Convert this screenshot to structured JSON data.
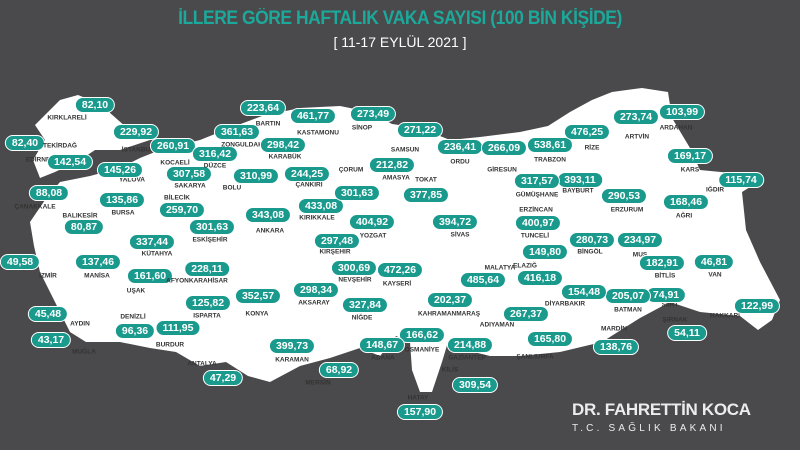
{
  "header": {
    "title": "İLLERE GÖRE HAFTALIK VAKA SAYISI (100 BİN KİŞİDE)",
    "date_range": "[ 11-17 EYLÜL 2021 ]"
  },
  "colors": {
    "background": "#4a4a4c",
    "map_fill": "#ffffff",
    "badge": "#1a9a8d",
    "title": "#1ba99b"
  },
  "provinces": [
    {
      "name": "KIRKLARELİ",
      "value": "82,10"
    },
    {
      "name": "EDİRNE",
      "value": "82,40"
    },
    {
      "name": "TEKİRDAĞ",
      "value": "142,54"
    },
    {
      "name": "İSTANBUL",
      "value": "229,92"
    },
    {
      "name": "KOCAELİ",
      "value": "260,91"
    },
    {
      "name": "YALOVA",
      "value": "145,26"
    },
    {
      "name": "SAKARYA",
      "value": "307,58"
    },
    {
      "name": "DÜZCE",
      "value": "316,42"
    },
    {
      "name": "ZONGULDAK",
      "value": "361,63"
    },
    {
      "name": "BARTIN",
      "value": "223,64"
    },
    {
      "name": "KARABÜK",
      "value": "298,42"
    },
    {
      "name": "KASTAMONU",
      "value": "461,77"
    },
    {
      "name": "SİNOP",
      "value": "273,49"
    },
    {
      "name": "SAMSUN",
      "value": "271,22"
    },
    {
      "name": "ORDU",
      "value": "236,41"
    },
    {
      "name": "GİRESUN",
      "value": "266,09"
    },
    {
      "name": "TRABZON",
      "value": "538,61"
    },
    {
      "name": "RİZE",
      "value": "476,25"
    },
    {
      "name": "ARTVİN",
      "value": "273,74"
    },
    {
      "name": "ARDAHAN",
      "value": "103,99"
    },
    {
      "name": "KARS",
      "value": "169,17"
    },
    {
      "name": "IĞDIR",
      "value": "115,74"
    },
    {
      "name": "AĞRI",
      "value": "168,46"
    },
    {
      "name": "ERZURUM",
      "value": "290,53"
    },
    {
      "name": "BAYBURT",
      "value": "393,11"
    },
    {
      "name": "GÜMÜŞHANE",
      "value": "317,57"
    },
    {
      "name": "ERZİNCAN",
      "value": "400,97"
    },
    {
      "name": "TUNCELİ",
      "value": "149,80"
    },
    {
      "name": "BİNGÖL",
      "value": "280,73"
    },
    {
      "name": "MUŞ",
      "value": "234,97"
    },
    {
      "name": "ELAZIĞ",
      "value": "416,18"
    },
    {
      "name": "MALATYA",
      "value": "485,64"
    },
    {
      "name": "BİTLİS",
      "value": "182,91"
    },
    {
      "name": "VAN",
      "value": "46,81"
    },
    {
      "name": "HAKKARİ",
      "value": "122,99"
    },
    {
      "name": "SİİRT",
      "value": "74,91"
    },
    {
      "name": "ŞIRNAK",
      "value": "54,11"
    },
    {
      "name": "BATMAN",
      "value": "205,07"
    },
    {
      "name": "DİYARBAKIR",
      "value": "154,48"
    },
    {
      "name": "MARDİN",
      "value": "138,76"
    },
    {
      "name": "ŞANLIURFA",
      "value": "165,80"
    },
    {
      "name": "ADIYAMAN",
      "value": "267,37"
    },
    {
      "name": "KAHRAMANMARAŞ",
      "value": "202,37"
    },
    {
      "name": "GAZİANTEP",
      "value": "214,88"
    },
    {
      "name": "KİLİS",
      "value": "309,54"
    },
    {
      "name": "OSMANİYE",
      "value": "166,62"
    },
    {
      "name": "HATAY",
      "value": "157,90"
    },
    {
      "name": "ADANA",
      "value": "148,67"
    },
    {
      "name": "MERSİN",
      "value": "68,92"
    },
    {
      "name": "KARAMAN",
      "value": "399,73"
    },
    {
      "name": "NİĞDE",
      "value": "327,84"
    },
    {
      "name": "AKSARAY",
      "value": "298,34"
    },
    {
      "name": "NEVŞEHİR",
      "value": "300,69"
    },
    {
      "name": "KAYSERİ",
      "value": "472,26"
    },
    {
      "name": "KIRŞEHİR",
      "value": "297,48"
    },
    {
      "name": "YOZGAT",
      "value": "404,92"
    },
    {
      "name": "KIRIKKALE",
      "value": "433,08"
    },
    {
      "name": "ÇORUM",
      "value": "301,63"
    },
    {
      "name": "ÇANKIRI",
      "value": "244,25"
    },
    {
      "name": "AMASYA",
      "value": "212,82"
    },
    {
      "name": "TOKAT",
      "value": "377,85"
    },
    {
      "name": "SİVAS",
      "value": "394,72"
    },
    {
      "name": "ANKARA",
      "value": "343,08"
    },
    {
      "name": "BOLU",
      "value": "310,99"
    },
    {
      "name": "ESKİŞEHİR",
      "value": "301,63"
    },
    {
      "name": "BİLECİK",
      "value": "259,70"
    },
    {
      "name": "BURSA",
      "value": "135,86"
    },
    {
      "name": "BALIKESİR",
      "value": "80,87"
    },
    {
      "name": "ÇANAKKALE",
      "value": "88,08"
    },
    {
      "name": "KÜTAHYA",
      "value": "337,44"
    },
    {
      "name": "İZMİR",
      "value": "49,58"
    },
    {
      "name": "MANİSA",
      "value": "137,46"
    },
    {
      "name": "UŞAK",
      "value": "161,60"
    },
    {
      "name": "AFYONKARAHİSAR",
      "value": "228,11"
    },
    {
      "name": "KONYA",
      "value": "352,57"
    },
    {
      "name": "ISPARTA",
      "value": "125,82"
    },
    {
      "name": "DENİZLİ",
      "value": "96,36"
    },
    {
      "name": "BURDUR",
      "value": "111,95"
    },
    {
      "name": "AYDIN",
      "value": "45,48"
    },
    {
      "name": "MUĞLA",
      "value": "43,17"
    },
    {
      "name": "ANTALYA",
      "value": "47,29"
    }
  ],
  "signature": {
    "name": "DR. FAHRETTİN KOCA",
    "role": "T.C. SAĞLIK BAKANI"
  }
}
